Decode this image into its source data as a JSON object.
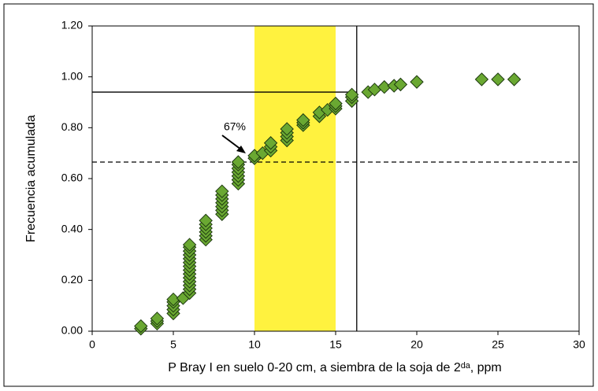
{
  "chart_data": {
    "type": "scatter",
    "x_label": "P Bray I en suelo 0-20 cm, a siembra de la soja de 2ᵈᵃ, ppm",
    "y_label": "Frecuencia acumulada",
    "annotation": "67%",
    "color": "#6aa832",
    "x": [
      3,
      3,
      4,
      4,
      4,
      5,
      5,
      5,
      5,
      5,
      5.6,
      6,
      6,
      6,
      6,
      6,
      6,
      6,
      6,
      6,
      6,
      6,
      6,
      6,
      6,
      7,
      7,
      7,
      7,
      7,
      7,
      8,
      8,
      8,
      8,
      8,
      8,
      8,
      9,
      9,
      9,
      9,
      9,
      9,
      9,
      10,
      10,
      10.5,
      11,
      11,
      11,
      12,
      12,
      12,
      12,
      13,
      13,
      13,
      14,
      14,
      14.5,
      15,
      15,
      15,
      16,
      16,
      16,
      17,
      17.4,
      18,
      18.6,
      19,
      20,
      24,
      25,
      26
    ],
    "y": [
      0.01,
      0.02,
      0.03,
      0.04,
      0.05,
      0.07,
      0.085,
      0.1,
      0.115,
      0.125,
      0.13,
      0.15,
      0.165,
      0.18,
      0.195,
      0.21,
      0.225,
      0.24,
      0.255,
      0.27,
      0.285,
      0.3,
      0.315,
      0.33,
      0.34,
      0.36,
      0.375,
      0.39,
      0.405,
      0.42,
      0.435,
      0.46,
      0.475,
      0.49,
      0.505,
      0.52,
      0.535,
      0.55,
      0.58,
      0.595,
      0.61,
      0.625,
      0.64,
      0.655,
      0.665,
      0.68,
      0.69,
      0.7,
      0.71,
      0.725,
      0.74,
      0.75,
      0.765,
      0.78,
      0.795,
      0.81,
      0.82,
      0.83,
      0.845,
      0.86,
      0.87,
      0.875,
      0.885,
      0.895,
      0.905,
      0.92,
      0.93,
      0.94,
      0.95,
      0.96,
      0.965,
      0.97,
      0.98,
      0.99,
      0.99,
      0.99
    ],
    "xlim": [
      0,
      30
    ],
    "xticks": [
      0,
      5,
      10,
      15,
      20,
      25,
      30
    ],
    "ylim": [
      0,
      1.2
    ],
    "yticks": [
      {
        "value": 0,
        "label": "0.00"
      },
      {
        "value": 0.2,
        "label": "0.20"
      },
      {
        "value": 0.4,
        "label": "0.40"
      },
      {
        "value": 0.6,
        "label": "0.60"
      },
      {
        "value": 0.8,
        "label": "0.80"
      },
      {
        "value": 1,
        "label": "1.00"
      },
      {
        "value": 1.2,
        "label": "1.20"
      }
    ],
    "highlight_band": [
      10,
      15
    ],
    "highlight_color": "#fff23f",
    "hline_solid": 0.94,
    "vline": 16.3,
    "hline_dashed": 0.665
  }
}
